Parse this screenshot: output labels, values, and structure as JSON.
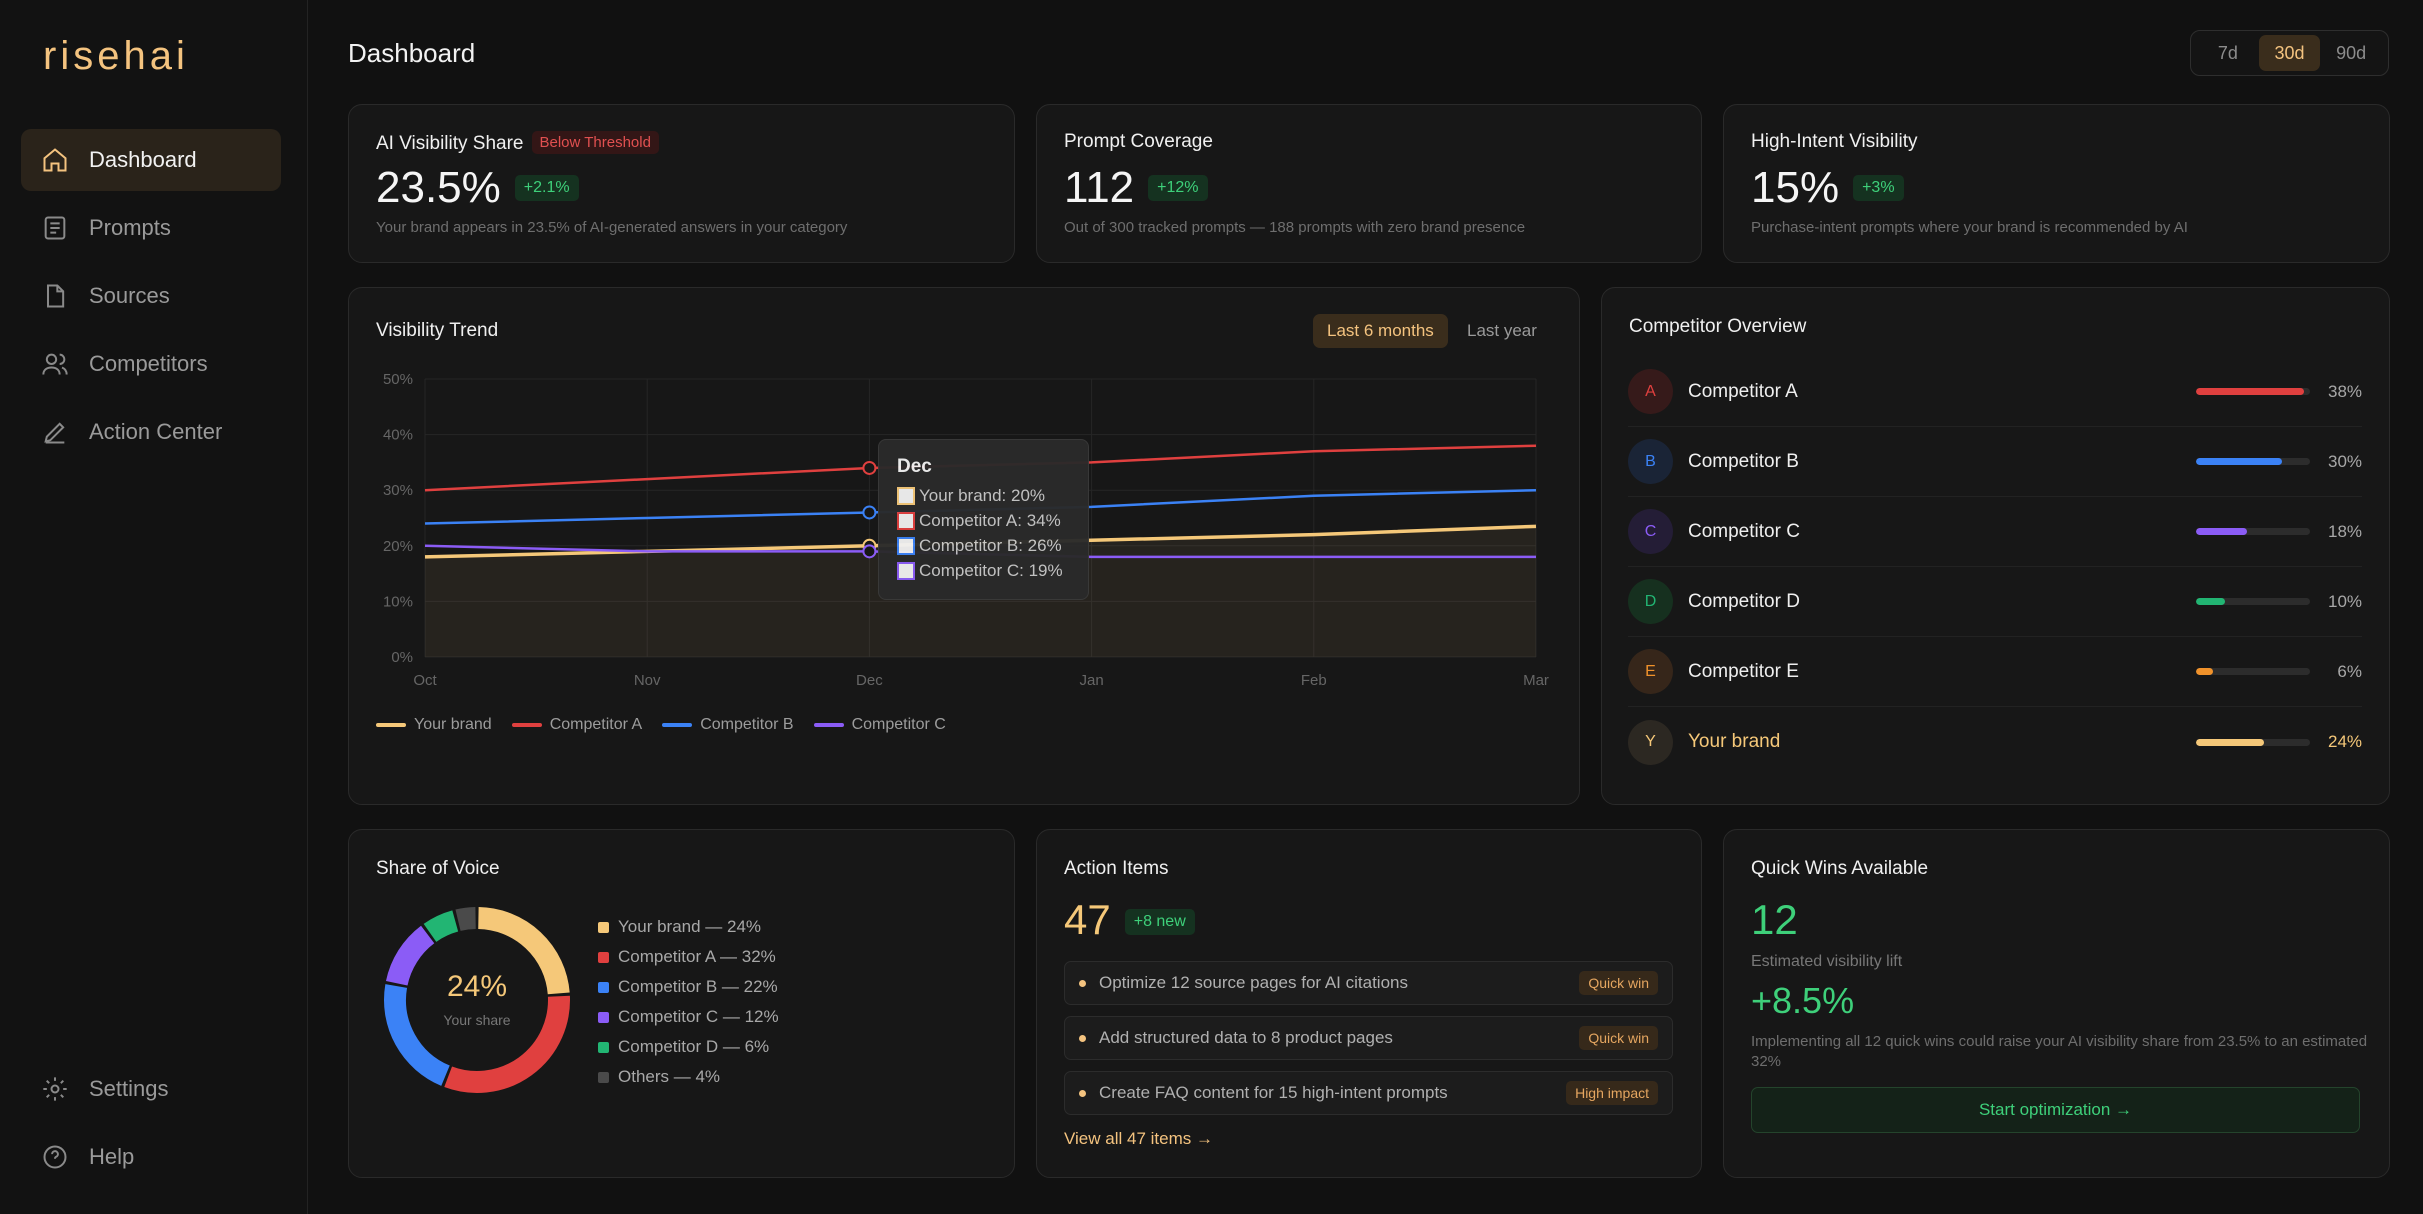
{
  "app": {
    "logo": "risehai"
  },
  "sidebar": {
    "items": [
      {
        "label": "Dashboard",
        "icon": "home-icon",
        "active": true
      },
      {
        "label": "Prompts",
        "icon": "document-list-icon"
      },
      {
        "label": "Sources",
        "icon": "file-icon"
      },
      {
        "label": "Competitors",
        "icon": "users-icon"
      },
      {
        "label": "Action Center",
        "icon": "pen-icon"
      }
    ],
    "bottom": [
      {
        "label": "Settings",
        "icon": "gear-icon"
      },
      {
        "label": "Help",
        "icon": "help-icon"
      }
    ]
  },
  "header": {
    "title": "Dashboard",
    "range_options": [
      "7d",
      "30d",
      "90d"
    ],
    "range_selected": "30d"
  },
  "metrics": {
    "visibility_share": {
      "title": "AI Visibility Share",
      "badge": "Below Threshold",
      "value": "23.5%",
      "change": "+2.1%",
      "subtext": "Your brand appears in 23.5% of AI-generated answers in your category"
    },
    "prompt_coverage": {
      "title": "Prompt Coverage",
      "value": "112",
      "change": "+12%",
      "subtext": "Out of 300 tracked prompts — 188 prompts with zero brand presence"
    },
    "high_intent": {
      "title": "High-Intent Visibility",
      "value": "15%",
      "change": "+3%",
      "subtext": "Purchase-intent prompts where your brand is recommended by AI"
    }
  },
  "trend": {
    "title": "Visibility Trend",
    "toggle_options": [
      "Last 6 months",
      "Last year"
    ],
    "toggle_selected": "Last 6 months",
    "tooltip": {
      "title": "Dec",
      "rows": [
        "Your brand: 20%",
        "Competitor A: 34%",
        "Competitor B: 26%",
        "Competitor C: 19%"
      ]
    }
  },
  "chart_data": {
    "type": "line",
    "categories": [
      "Oct",
      "Nov",
      "Dec",
      "Jan",
      "Feb",
      "Mar"
    ],
    "y_ticks": [
      "0%",
      "10%",
      "20%",
      "30%",
      "40%",
      "50%"
    ],
    "ylim": [
      0,
      50
    ],
    "grid": true,
    "legend_position": "bottom-left",
    "series": [
      {
        "name": "Your brand",
        "color": "#f5c879",
        "values": [
          18,
          19,
          20,
          21,
          22,
          23.5
        ],
        "area": true
      },
      {
        "name": "Competitor A",
        "color": "#e0403f",
        "values": [
          30,
          32,
          34,
          35,
          37,
          38
        ]
      },
      {
        "name": "Competitor B",
        "color": "#3b82f6",
        "values": [
          24,
          25,
          26,
          27,
          29,
          30
        ]
      },
      {
        "name": "Competitor C",
        "color": "#8b5cf6",
        "values": [
          20,
          19,
          19,
          18,
          18,
          18
        ]
      }
    ]
  },
  "competitors": {
    "title": "Competitor Overview",
    "rows": [
      {
        "initial": "A",
        "name": "Competitor A",
        "pct": "38%",
        "value": 38,
        "color": "#e0403f",
        "bg": "#361a1a"
      },
      {
        "initial": "B",
        "name": "Competitor B",
        "pct": "30%",
        "value": 30,
        "color": "#3b82f6",
        "bg": "#1a2436"
      },
      {
        "initial": "C",
        "name": "Competitor C",
        "pct": "18%",
        "value": 18,
        "color": "#8b5cf6",
        "bg": "#241d36"
      },
      {
        "initial": "D",
        "name": "Competitor D",
        "pct": "10%",
        "value": 10,
        "color": "#22b573",
        "bg": "#16301f"
      },
      {
        "initial": "E",
        "name": "Competitor E",
        "pct": "6%",
        "value": 6,
        "color": "#f0922b",
        "bg": "#36261a"
      },
      {
        "initial": "Y",
        "name": "Your brand",
        "pct": "24%",
        "value": 24,
        "color": "#f5c879",
        "bg": "#2c2822",
        "highlight": true
      }
    ]
  },
  "share_of_voice": {
    "title": "Share of Voice",
    "center_value": "24%",
    "center_label": "Your share",
    "segments": [
      {
        "label": "Your brand — 24%",
        "value": 24,
        "color": "#f5c879"
      },
      {
        "label": "Competitor A — 32%",
        "value": 32,
        "color": "#e0403f"
      },
      {
        "label": "Competitor B — 22%",
        "value": 22,
        "color": "#3b82f6"
      },
      {
        "label": "Competitor C — 12%",
        "value": 12,
        "color": "#8b5cf6"
      },
      {
        "label": "Competitor D — 6%",
        "value": 6,
        "color": "#22b573"
      },
      {
        "label": "Others — 4%",
        "value": 4,
        "color": "#4a4a4a"
      }
    ]
  },
  "action_items": {
    "title": "Action Items",
    "count": "47",
    "new_badge": "+8 new",
    "items": [
      {
        "text": "Optimize 12 source pages for AI citations",
        "tag": "Quick win"
      },
      {
        "text": "Add structured data to 8 product pages",
        "tag": "Quick win"
      },
      {
        "text": "Create FAQ content for 15 high-intent prompts",
        "tag": "High impact"
      }
    ],
    "view_all": "View all 47 items →"
  },
  "quick_wins": {
    "title": "Quick Wins Available",
    "count": "12",
    "lift_label": "Estimated visibility lift",
    "lift_value": "+8.5%",
    "description": "Implementing all 12 quick wins could raise your AI visibility share from 23.5% to an estimated 32%",
    "button": "Start optimization →"
  }
}
